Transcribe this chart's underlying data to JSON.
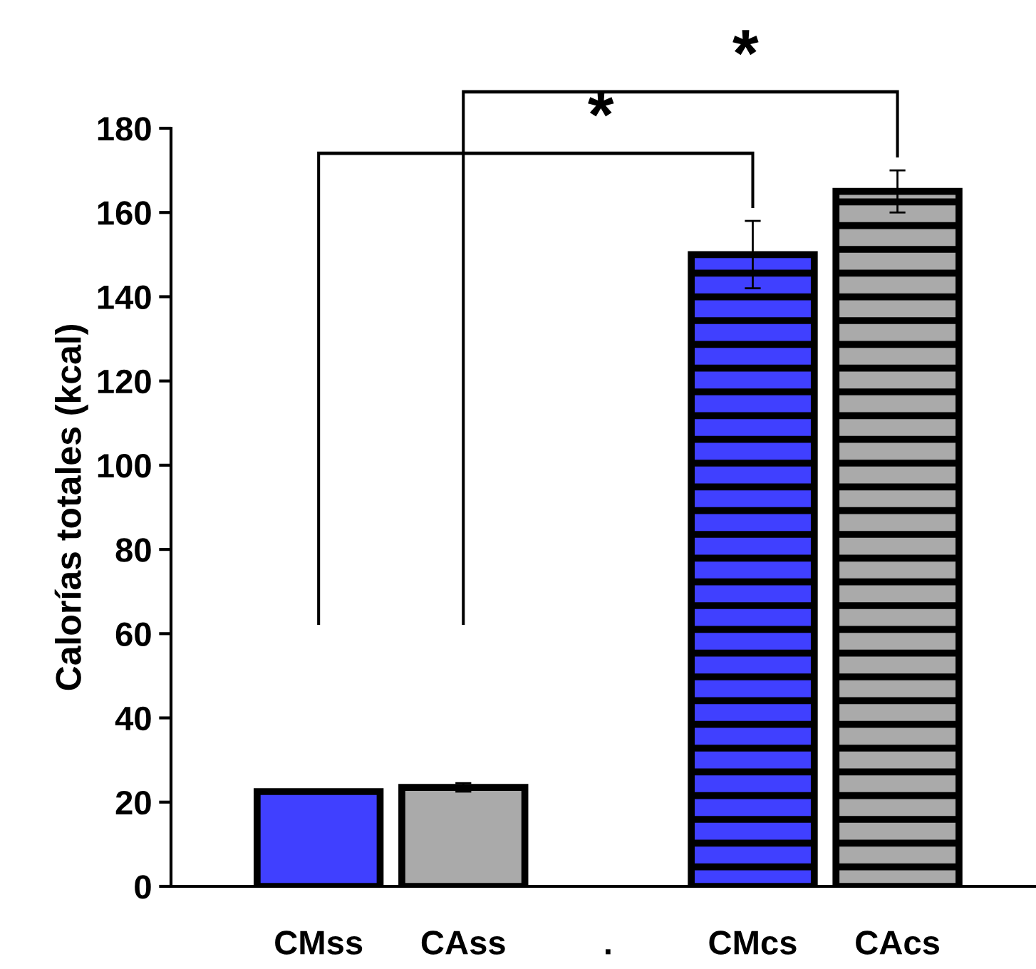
{
  "chart_data": {
    "type": "bar",
    "ylabel": "Calorías totales (kcal)",
    "categories": [
      "CMss",
      "CAss",
      ".",
      "CMcs",
      "CAcs"
    ],
    "series": [
      {
        "colors": [
          "#4040ff",
          "#aaaaaa",
          null,
          null,
          null
        ],
        "values": [
          22.5,
          23.5,
          null,
          null,
          null
        ],
        "errors": [
          null,
          1,
          null,
          null,
          null
        ]
      },
      {
        "colors": [
          null,
          null,
          null,
          "#4040ff",
          "#aaaaaa"
        ],
        "values": [
          null,
          null,
          null,
          150,
          165
        ],
        "errors": [
          null,
          null,
          null,
          8,
          5
        ]
      }
    ],
    "ylim": [
      0,
      180
    ],
    "yticks": [
      0,
      20,
      40,
      60,
      80,
      100,
      120,
      140,
      160,
      180
    ],
    "annotations": [
      "*",
      "*"
    ],
    "grid": false,
    "legend": false
  }
}
